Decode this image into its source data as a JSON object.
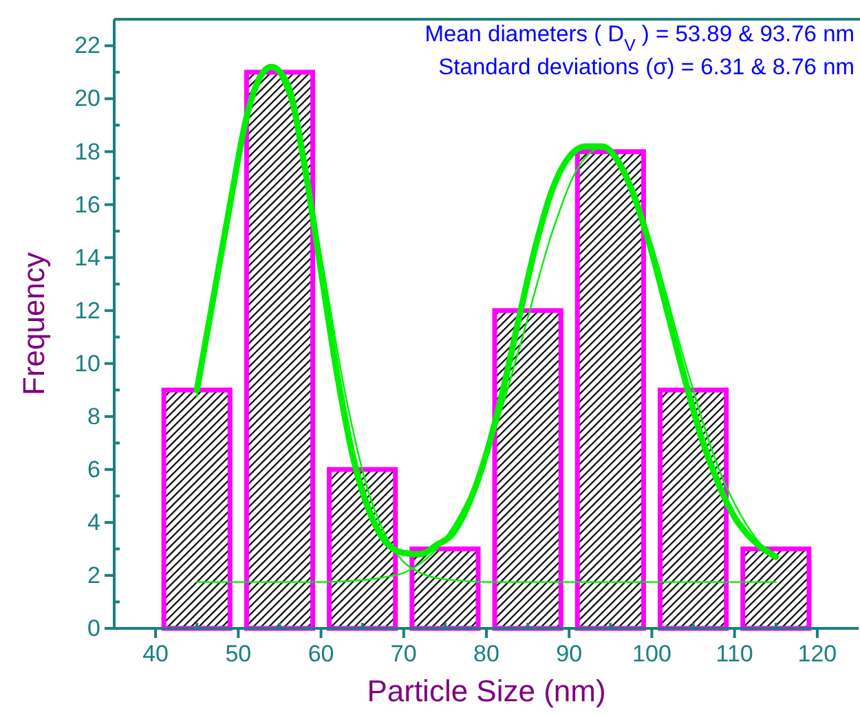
{
  "chart_data": {
    "type": "histogram",
    "xlabel": "Particle Size (nm)",
    "ylabel": "Frequency",
    "annotations": [
      "Mean diameters ( D$_{V}$ ) = 53.89 & 93.76 nm",
      "Standard deviations (σ) = 6.31 & 8.76 nm"
    ],
    "bins": [
      40,
      50,
      60,
      70,
      80,
      90,
      100,
      110,
      120
    ],
    "values": [
      9,
      21,
      6,
      3,
      12,
      18,
      9,
      3
    ],
    "color": "#ff00ff",
    "series": [
      {
        "type": "line",
        "color": "#00ee00",
        "x": [
          45,
          47,
          49,
          51,
          53,
          54,
          56,
          58,
          60,
          62,
          64,
          66,
          68,
          70,
          72,
          74,
          76,
          78,
          80,
          82,
          84,
          86,
          88,
          90,
          92,
          94,
          96,
          98,
          100,
          102,
          104,
          106,
          108,
          110,
          112,
          115
        ],
        "values": [
          9,
          12.5,
          16,
          19.3,
          21,
          21.2,
          20.5,
          17.5,
          13.5,
          9.5,
          6.3,
          4.3,
          3.2,
          2.85,
          2.8,
          3.15,
          3.6,
          4.8,
          6.6,
          9,
          11.8,
          14.5,
          16.6,
          17.8,
          18.2,
          18.2,
          17.6,
          16.2,
          14.2,
          11.8,
          9.4,
          7.2,
          5.5,
          4.2,
          3.4,
          2.7
        ]
      },
      {
        "type": "line",
        "color": "#00ee00",
        "x": [
          45,
          48,
          51,
          54,
          57,
          60,
          63,
          66,
          68,
          70,
          72,
          74,
          77,
          80,
          115
        ],
        "values": [
          8.75,
          14.1,
          19.1,
          21.15,
          19.1,
          14.1,
          8.75,
          4.9,
          3.4,
          2.5,
          2.1,
          1.9,
          1.8,
          1.75,
          1.75
        ]
      },
      {
        "type": "line",
        "color": "#00ee00",
        "x": [
          45,
          60,
          64,
          66,
          68,
          70,
          72,
          74,
          77,
          80,
          84,
          88,
          91,
          94,
          97,
          100,
          104,
          108,
          112,
          115
        ],
        "values": [
          1.75,
          1.75,
          1.8,
          1.85,
          1.95,
          2.1,
          2.45,
          3,
          4.4,
          6.5,
          10.6,
          15,
          17.35,
          18.15,
          17.05,
          14.5,
          10.05,
          6.1,
          3.65,
          2.6
        ]
      }
    ],
    "xlim": [
      35,
      125
    ],
    "xticks": [
      40,
      50,
      60,
      70,
      80,
      90,
      100,
      110,
      120
    ],
    "ylim": [
      0,
      23
    ],
    "yticks": [
      0,
      2,
      4,
      6,
      8,
      10,
      12,
      14,
      16,
      18,
      20,
      22
    ]
  }
}
